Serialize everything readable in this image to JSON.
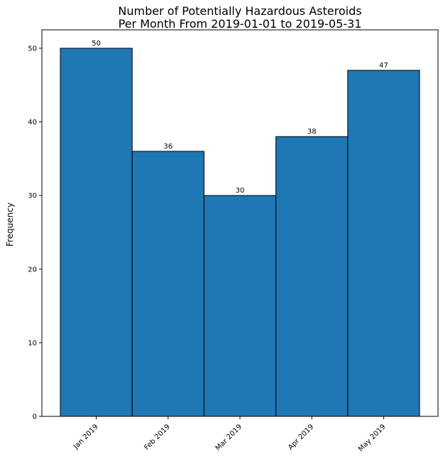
{
  "chart_data": {
    "type": "bar",
    "title_lines": [
      "Number of Potentially Hazardous Asteroids",
      "Per Month From 2019-01-01 to 2019-05-31"
    ],
    "xlabel": "",
    "ylabel": "Frequency",
    "categories": [
      "Jan 2019",
      "Feb 2019",
      "Mar 2019",
      "Apr 2019",
      "May 2019"
    ],
    "values": [
      50,
      36,
      30,
      38,
      47
    ],
    "data_labels": [
      "50",
      "36",
      "30",
      "38",
      "47"
    ],
    "ylim": [
      0,
      52.5
    ],
    "yticks": [
      0,
      10,
      20,
      30,
      40,
      50
    ],
    "ytick_labels": [
      "0",
      "10",
      "20",
      "30",
      "40",
      "50"
    ],
    "bar_color": "#1f77b4",
    "bar_edge_color": "#000000",
    "grid": false,
    "legend": "none"
  }
}
